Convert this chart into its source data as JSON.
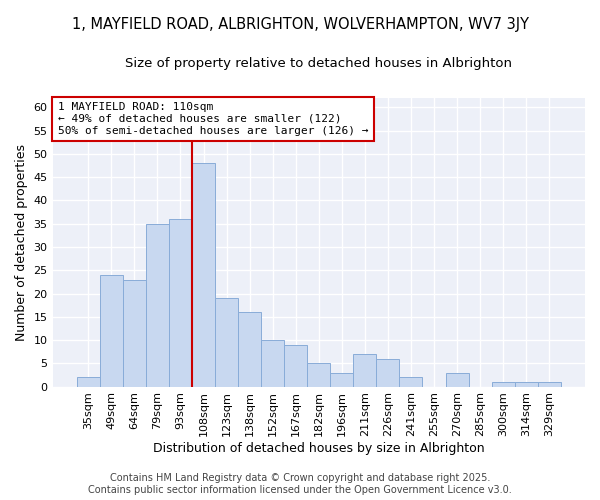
{
  "title_line1": "1, MAYFIELD ROAD, ALBRIGHTON, WOLVERHAMPTON, WV7 3JY",
  "title_line2": "Size of property relative to detached houses in Albrighton",
  "xlabel": "Distribution of detached houses by size in Albrighton",
  "ylabel": "Number of detached properties",
  "categories": [
    "35sqm",
    "49sqm",
    "64sqm",
    "79sqm",
    "93sqm",
    "108sqm",
    "123sqm",
    "138sqm",
    "152sqm",
    "167sqm",
    "182sqm",
    "196sqm",
    "211sqm",
    "226sqm",
    "241sqm",
    "255sqm",
    "270sqm",
    "285sqm",
    "300sqm",
    "314sqm",
    "329sqm"
  ],
  "values": [
    2,
    24,
    23,
    35,
    36,
    48,
    19,
    16,
    10,
    9,
    5,
    3,
    7,
    6,
    2,
    0,
    3,
    0,
    1,
    1,
    1
  ],
  "bar_color": "#c8d8f0",
  "bar_edge_color": "#89acd8",
  "background_color": "#ffffff",
  "plot_bg_color": "#edf0f8",
  "grid_color": "#ffffff",
  "vline_color": "#cc0000",
  "vline_x": 4.5,
  "annotation_text": "1 MAYFIELD ROAD: 110sqm\n← 49% of detached houses are smaller (122)\n50% of semi-detached houses are larger (126) →",
  "annotation_box_color": "#ffffff",
  "annotation_box_edge_color": "#cc0000",
  "ylim": [
    0,
    62
  ],
  "yticks": [
    0,
    5,
    10,
    15,
    20,
    25,
    30,
    35,
    40,
    45,
    50,
    55,
    60
  ],
  "footer_line1": "Contains HM Land Registry data © Crown copyright and database right 2025.",
  "footer_line2": "Contains public sector information licensed under the Open Government Licence v3.0.",
  "title_fontsize": 10.5,
  "subtitle_fontsize": 9.5,
  "label_fontsize": 9,
  "tick_fontsize": 8,
  "annotation_fontsize": 8,
  "footer_fontsize": 7
}
